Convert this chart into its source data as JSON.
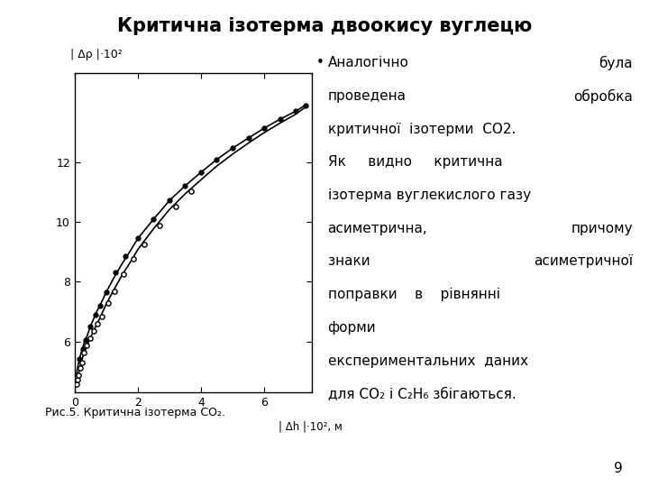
{
  "title": "Критична ізотерма двоокису вуглецю",
  "title_fontsize": 15,
  "title_fontweight": "bold",
  "background_color": "#ffffff",
  "ylabel": "| Δρ |·10²",
  "xlabel": "| Δh |·10², м",
  "xlim": [
    0,
    7.5
  ],
  "ylim": [
    4.3,
    15.0
  ],
  "yticks": [
    6,
    8,
    10,
    12
  ],
  "xticks": [
    0,
    2,
    4,
    6
  ],
  "caption": "Рис.5. Критична ізотерма CO₂.",
  "page_number": "9",
  "curve1_x": [
    0.05,
    0.1,
    0.15,
    0.2,
    0.3,
    0.4,
    0.5,
    0.6,
    0.7,
    0.8,
    1.0,
    1.2,
    1.5,
    1.8,
    2.0,
    2.5,
    3.0,
    3.5,
    4.0,
    4.5,
    5.0,
    5.5,
    6.0,
    6.5,
    7.0,
    7.3
  ],
  "curve1_y": [
    4.85,
    5.15,
    5.4,
    5.6,
    5.95,
    6.2,
    6.5,
    6.75,
    7.0,
    7.2,
    7.65,
    8.05,
    8.6,
    9.1,
    9.45,
    10.1,
    10.72,
    11.22,
    11.67,
    12.1,
    12.48,
    12.82,
    13.15,
    13.45,
    13.72,
    13.92
  ],
  "curve2_x": [
    0.05,
    0.1,
    0.15,
    0.2,
    0.3,
    0.4,
    0.5,
    0.6,
    0.7,
    0.8,
    1.0,
    1.2,
    1.5,
    1.8,
    2.0,
    2.5,
    3.0,
    3.5,
    4.0,
    4.5,
    5.0,
    5.5,
    6.0,
    6.5,
    7.0,
    7.3
  ],
  "curve2_y": [
    4.55,
    4.8,
    5.05,
    5.28,
    5.62,
    5.88,
    6.12,
    6.35,
    6.58,
    6.78,
    7.25,
    7.65,
    8.22,
    8.72,
    9.08,
    9.78,
    10.42,
    10.95,
    11.42,
    11.88,
    12.28,
    12.65,
    13.0,
    13.32,
    13.62,
    13.85
  ],
  "dots_filled_x": [
    0.15,
    0.25,
    0.35,
    0.5,
    0.65,
    0.8,
    1.0,
    1.3,
    1.6,
    2.0,
    2.5,
    3.0,
    3.5,
    4.0,
    4.5,
    5.0,
    5.5,
    6.0,
    6.5,
    7.0,
    7.3
  ],
  "dots_filled_y": [
    5.4,
    5.75,
    6.05,
    6.5,
    6.9,
    7.2,
    7.65,
    8.3,
    8.85,
    9.45,
    10.1,
    10.72,
    11.22,
    11.67,
    12.1,
    12.48,
    12.82,
    13.15,
    13.45,
    13.72,
    13.92
  ],
  "dots_open_x": [
    0.05,
    0.08,
    0.12,
    0.17,
    0.22,
    0.3,
    0.38,
    0.48,
    0.6,
    0.72,
    0.85,
    1.05,
    1.25,
    1.55,
    1.85,
    2.2,
    2.7,
    3.2,
    3.7
  ],
  "dots_open_y": [
    4.55,
    4.7,
    4.88,
    5.1,
    5.3,
    5.62,
    5.85,
    6.1,
    6.35,
    6.6,
    6.82,
    7.28,
    7.68,
    8.25,
    8.78,
    9.25,
    9.88,
    10.52,
    11.05
  ]
}
